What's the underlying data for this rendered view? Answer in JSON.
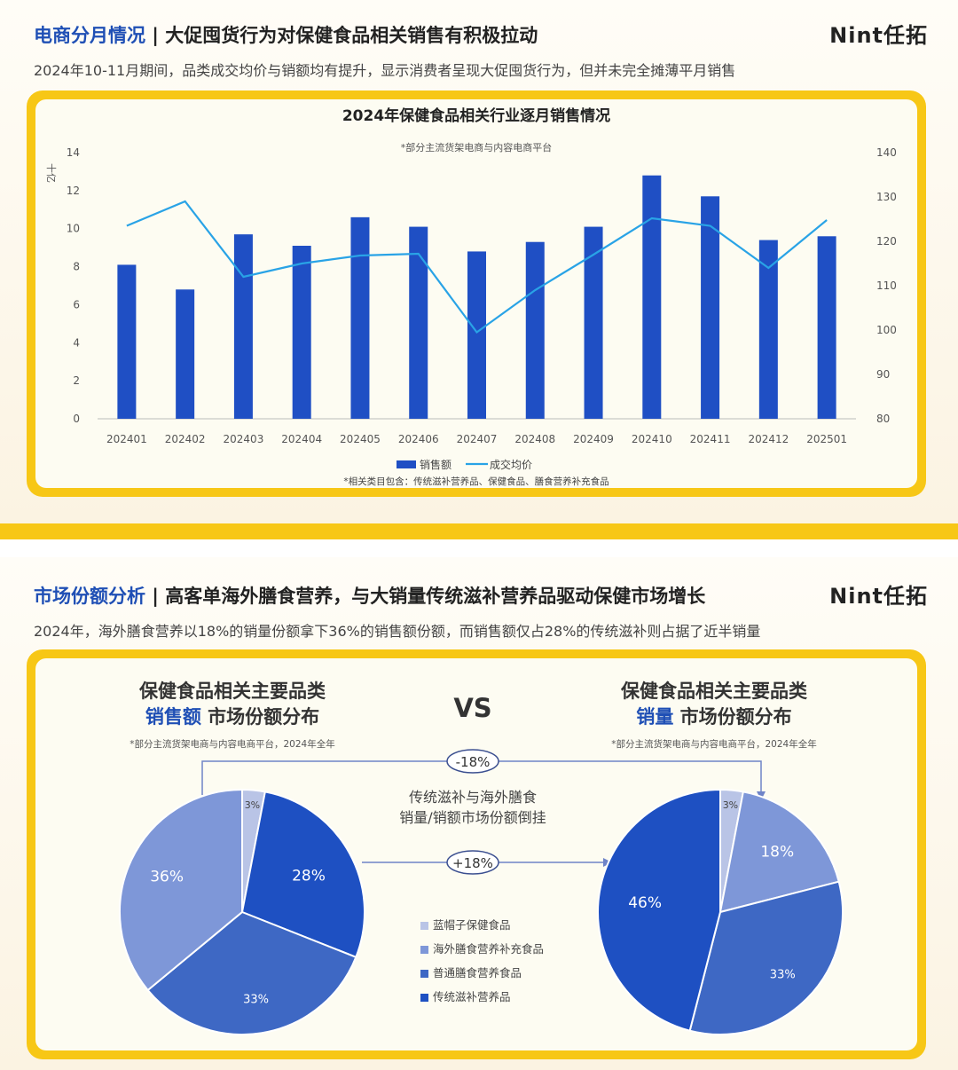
{
  "slide1": {
    "header_prefix": "电商分月情况",
    "header_sep": " | ",
    "header_title": "大促囤货行为对保健食品相关销售有积极拉动",
    "subtitle": "2024年10-11月期间，品类成交均价与销额均有提升，显示消费者呈现大促囤货行为，但并未完全摊薄平月销售",
    "logo": "Nint任拓"
  },
  "slide2": {
    "header_prefix": "市场份额分析",
    "header_sep": " | ",
    "header_title": "高客单海外膳食营养，与大销量传统滋补营养品驱动保健市场增长",
    "subtitle": "2024年，海外膳食营养以18%的销量份额拿下36%的销售额份额，而销售额仅占28%的传统滋补则占据了近半销量",
    "logo": "Nint任拓",
    "left_title_1": "保健食品相关主要品类",
    "left_title_2a": "销售额",
    "left_title_2b": " 市场份额分布",
    "left_note": "*部分主流货架电商与内容电商平台，2024年全年",
    "vs": "VS",
    "right_title_1": "保健食品相关主要品类",
    "right_title_2a": "销量",
    "right_title_2b": " 市场份额分布",
    "right_note": "*部分主流货架电商与内容电商平台，2024年全年",
    "center_text_1": "传统滋补与海外膳食",
    "center_text_2": "销量/销额市场份额倒挂",
    "arrow_top_label": "-18%",
    "arrow_mid_label": "+18%"
  },
  "chart_data": [
    {
      "type": "bar",
      "title": "2024年保健食品相关行业逐月销售情况",
      "subtitle": "*部分主流货架电商与内容电商平台",
      "footnote": "*相关类目包含：传统滋补营养品、保健食品、膳食营养补充食品",
      "ylabel": "十亿",
      "categories": [
        "202401",
        "202402",
        "202403",
        "202404",
        "202405",
        "202406",
        "202407",
        "202408",
        "202409",
        "202410",
        "202411",
        "202412",
        "202501"
      ],
      "series": [
        {
          "name": "销售额",
          "type": "bar",
          "axis": "left",
          "color": "#1f4fc4",
          "values": [
            8.1,
            6.8,
            9.7,
            9.1,
            10.6,
            10.1,
            8.8,
            9.3,
            10.1,
            12.8,
            11.7,
            9.4,
            9.6
          ]
        },
        {
          "name": "成交均价",
          "type": "line",
          "axis": "right",
          "color": "#29a3e6",
          "values": [
            123.5,
            129,
            112,
            115,
            116.8,
            117.2,
            99.5,
            109,
            117,
            125.2,
            123.5,
            114,
            124.8
          ]
        }
      ],
      "ylim_left": [
        0,
        14
      ],
      "yticks_left": [
        0,
        2,
        4,
        6,
        8,
        10,
        12,
        14
      ],
      "ylim_right": [
        80,
        140
      ],
      "yticks_right": [
        80,
        90,
        100,
        110,
        120,
        130,
        140
      ],
      "legend": "bottom"
    },
    {
      "type": "pie",
      "title": "销售额 市场份额分布",
      "slices": [
        {
          "name": "蓝帽子保健食品",
          "value": 3,
          "label": "3%",
          "color": "#b9c4e6"
        },
        {
          "name": "传统滋补营养品",
          "value": 28,
          "label": "28%",
          "color": "#1e50c2"
        },
        {
          "name": "普通膳食营养食品",
          "value": 33,
          "label": "33%",
          "color": "#3e68c4"
        },
        {
          "name": "海外膳食营养补充食品",
          "value": 36,
          "label": "36%",
          "color": "#7e97d8"
        }
      ]
    },
    {
      "type": "pie",
      "title": "销量 市场份额分布",
      "slices": [
        {
          "name": "蓝帽子保健食品",
          "value": 3,
          "label": "3%",
          "color": "#b9c4e6"
        },
        {
          "name": "海外膳食营养补充食品",
          "value": 18,
          "label": "18%",
          "color": "#7e97d8"
        },
        {
          "name": "普通膳食营养食品",
          "value": 33,
          "label": "33%",
          "color": "#3e68c4"
        },
        {
          "name": "传统滋补营养品",
          "value": 46,
          "label": "46%",
          "color": "#1e50c2"
        }
      ]
    }
  ],
  "pie_legend": [
    {
      "name": "蓝帽子保健食品",
      "color": "#b9c4e6"
    },
    {
      "name": "海外膳食营养补充食品",
      "color": "#7e97d8"
    },
    {
      "name": "普通膳食营养食品",
      "color": "#3e68c4"
    },
    {
      "name": "传统滋补营养品",
      "color": "#1e50c2"
    }
  ]
}
